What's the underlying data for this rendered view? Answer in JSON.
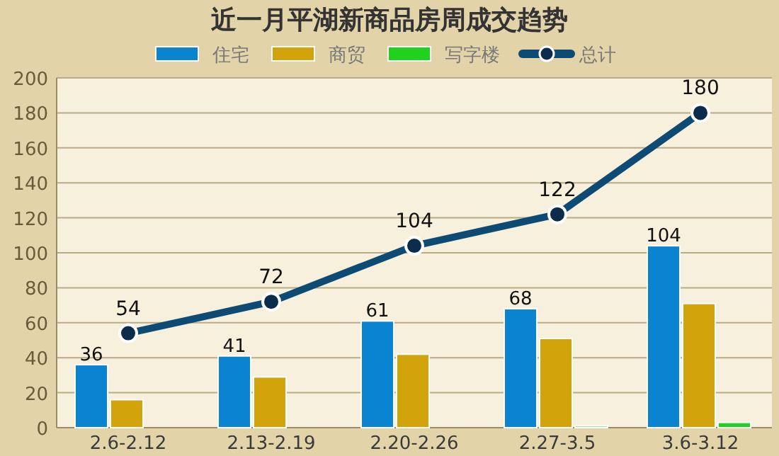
{
  "chart_data": {
    "type": "bar",
    "title": "近一月平湖新商品房周成交趋势",
    "categories": [
      "2.6-2.12",
      "2.13-2.19",
      "2.20-2.26",
      "2.27-3.5",
      "3.6-3.12"
    ],
    "series": [
      {
        "name": "住宅",
        "color": "#0a84d0",
        "values": [
          36,
          41,
          61,
          68,
          104
        ],
        "value_labels": [
          "36",
          "41",
          "61",
          "68",
          "104"
        ]
      },
      {
        "name": "商贸",
        "color": "#d2a30a",
        "values": [
          16,
          29,
          42,
          51,
          71
        ]
      },
      {
        "name": "写字楼",
        "color": "#1ed21e",
        "values": [
          0,
          0,
          0,
          1,
          3
        ]
      },
      {
        "name": "总计",
        "type": "line",
        "color": "#0d4a74",
        "marker": "circle",
        "values": [
          54,
          72,
          104,
          122,
          180
        ],
        "value_labels": [
          "54",
          "72",
          "104",
          "122",
          "180"
        ]
      }
    ],
    "ylim": [
      0,
      200
    ],
    "yticks": [
      0,
      20,
      40,
      60,
      80,
      100,
      120,
      140,
      160,
      180,
      200
    ],
    "grid": "y",
    "legend": "top"
  }
}
